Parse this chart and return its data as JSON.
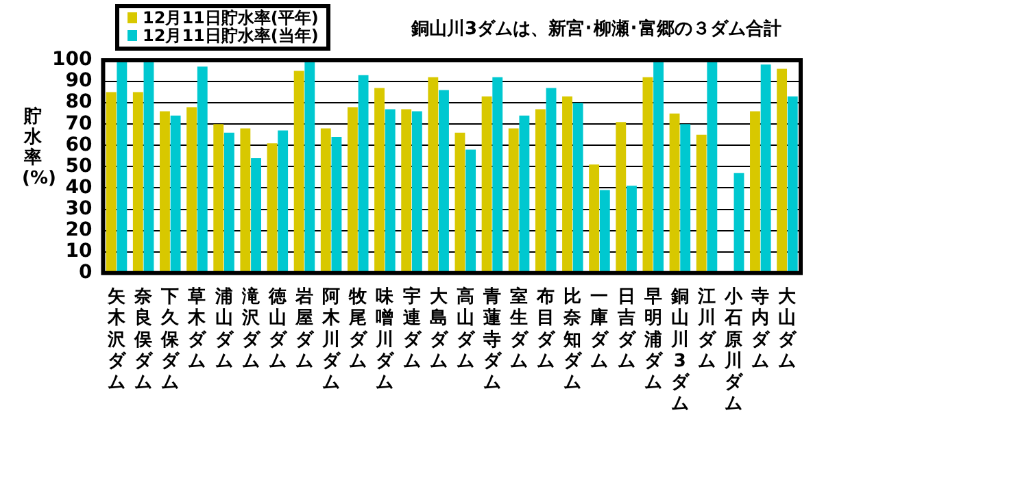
{
  "chart_data": {
    "type": "bar",
    "ylabel": "貯水率(%)",
    "annotations": [
      "銅山川3ダムは、新宮･柳瀬･富郷の３ダム合計"
    ],
    "categories": [
      "矢木沢ダム",
      "奈良俣ダム",
      "下久保ダム",
      "草木ダム",
      "浦山ダム",
      "滝沢ダム",
      "徳山ダム",
      "岩屋ダム",
      "阿木川ダム",
      "牧尾ダム",
      "味噌川ダム",
      "宇連ダム",
      "大島ダム",
      "高山ダム",
      "青蓮寺ダム",
      "室生ダム",
      "布目ダム",
      "比奈知ダム",
      "一庫ダム",
      "日吉ダム",
      "早明浦ダム",
      "銅山川3ダム",
      "江川ダム",
      "小石原川ダム",
      "寺内ダム",
      "大山ダム"
    ],
    "series": [
      {
        "name": "12月11日貯水率(平年)",
        "color": "#d8c800",
        "values": [
          85,
          85,
          76,
          78,
          70,
          68,
          61,
          95,
          68,
          78,
          87,
          77,
          92,
          66,
          83,
          68,
          77,
          83,
          51,
          71,
          92,
          75,
          65,
          null,
          76,
          96
        ]
      },
      {
        "name": "12月11日貯水率(当年)",
        "color": "#00c8d0",
        "values": [
          100,
          99,
          74,
          97,
          66,
          54,
          67,
          100,
          64,
          93,
          77,
          76,
          86,
          58,
          92,
          74,
          87,
          80,
          39,
          41,
          100,
          70,
          99,
          47,
          98,
          83
        ]
      }
    ],
    "ylim": [
      0,
      100
    ],
    "yticks": [
      0,
      10,
      20,
      30,
      40,
      50,
      60,
      70,
      80,
      90,
      100
    ],
    "grid": "y",
    "legend": "top left"
  }
}
